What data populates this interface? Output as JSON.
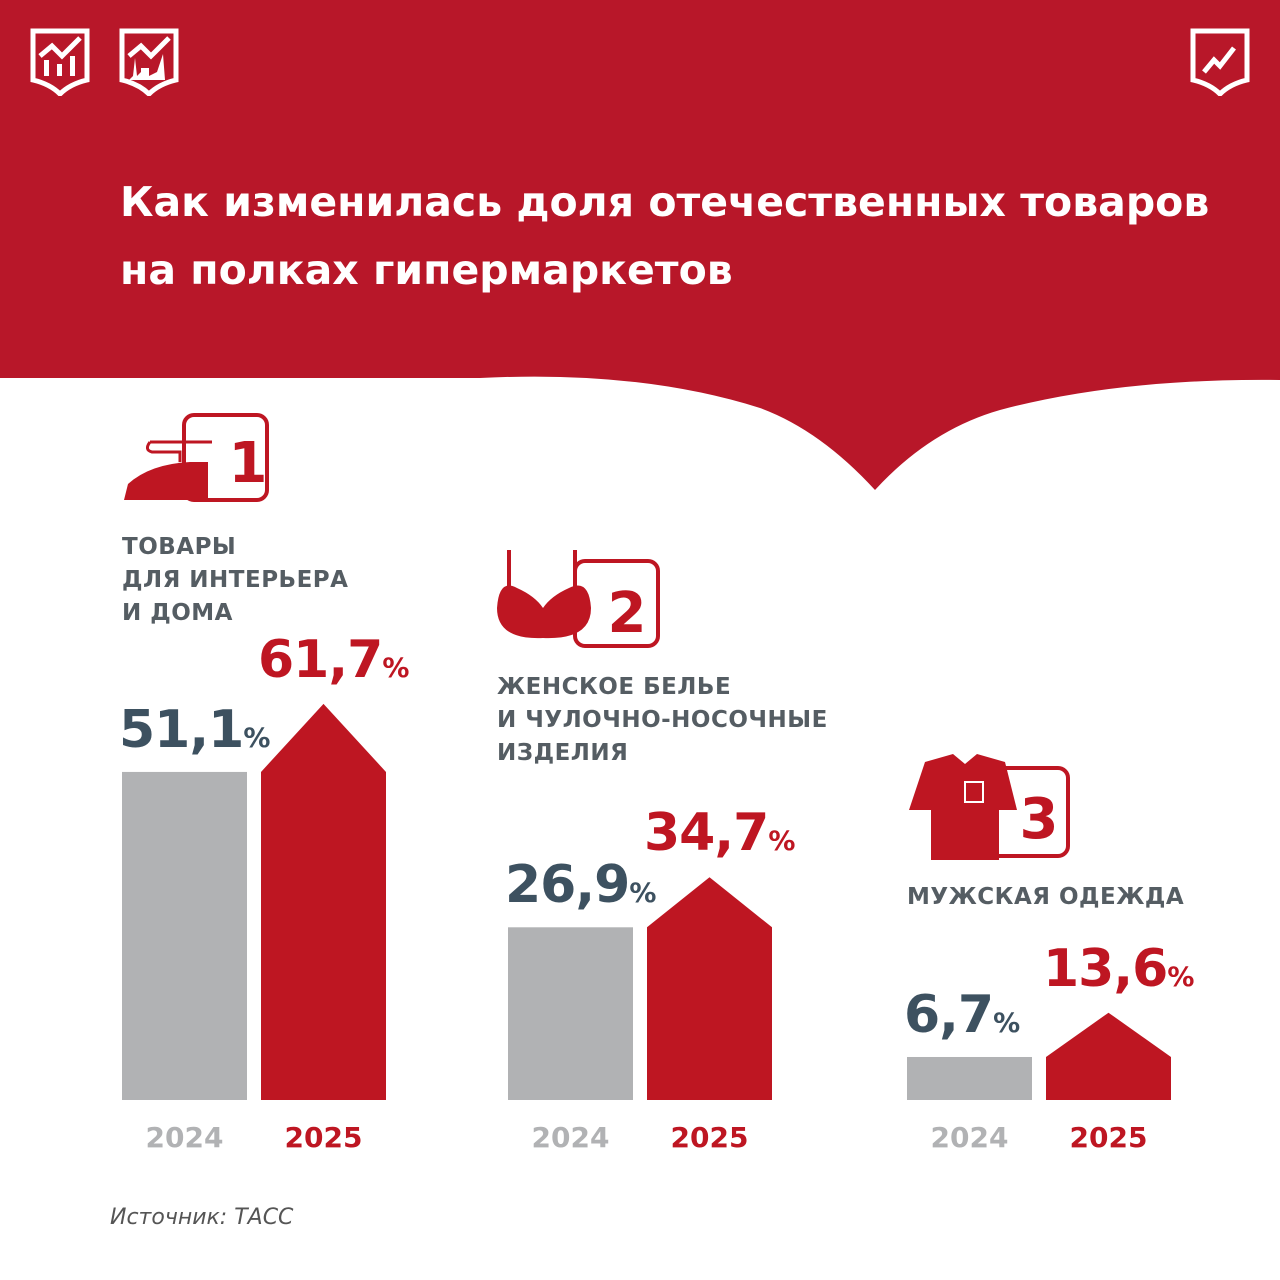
{
  "title": "Как изменилась доля отечественных товаров на полках гипермаркетов",
  "colors": {
    "header": "#b81729",
    "bar_2024": "#b1b2b4",
    "bar_2025": "#be1622",
    "value_2024": "#3d5160"
  },
  "source": "Источник: ТАСС",
  "chart_data": [
    {
      "type": "bar",
      "rank": "1",
      "icon": "iron-icon",
      "title": "ТОВАРЫ\nДЛЯ ИНТЕРЬЕРА\nИ ДОМА",
      "categories": [
        "2024",
        "2025"
      ],
      "values": [
        51.1,
        61.7
      ],
      "labels": [
        "51,1",
        "61,7"
      ],
      "unit": "%"
    },
    {
      "type": "bar",
      "rank": "2",
      "icon": "bra-icon",
      "title": "ЖЕНСКОЕ БЕЛЬЕ\nИ ЧУЛОЧНО-НОСОЧНЫЕ\nИЗДЕЛИЯ",
      "categories": [
        "2024",
        "2025"
      ],
      "values": [
        26.9,
        34.7
      ],
      "labels": [
        "26,9",
        "34,7"
      ],
      "unit": "%"
    },
    {
      "type": "bar",
      "rank": "3",
      "icon": "shirt-icon",
      "title": "МУЖСКАЯ ОДЕЖДА",
      "categories": [
        "2024",
        "2025"
      ],
      "values": [
        6.7,
        13.6
      ],
      "labels": [
        "6,7",
        "13,6"
      ],
      "unit": "%"
    }
  ]
}
